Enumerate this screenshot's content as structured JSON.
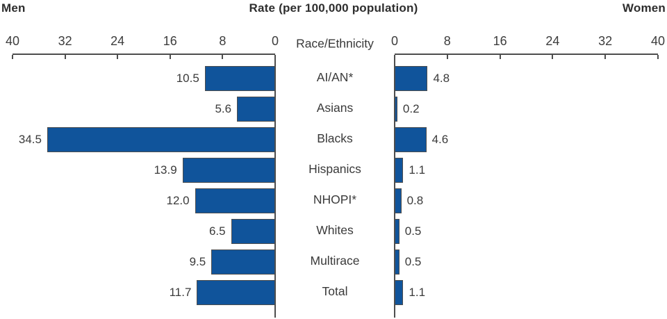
{
  "header": {
    "left_label": "Men",
    "title": "Rate (per 100,000 population)",
    "right_label": "Women"
  },
  "chart_data": {
    "type": "bar",
    "subtype": "bidirectional-horizontal-butterfly",
    "title": "Rate (per 100,000 population)",
    "category_axis_title": "Race/Ethnicity",
    "categories": [
      "AI/AN*",
      "Asians",
      "Blacks",
      "Hispanics",
      "NHOPI*",
      "Whites",
      "Multirace",
      "Total"
    ],
    "series": [
      {
        "name": "Men",
        "side": "left",
        "values": [
          10.5,
          5.6,
          34.5,
          13.9,
          12.0,
          6.5,
          9.5,
          11.7
        ]
      },
      {
        "name": "Women",
        "side": "right",
        "values": [
          4.8,
          0.2,
          4.6,
          1.1,
          0.8,
          0.5,
          0.5,
          1.1
        ]
      }
    ],
    "value_labels": {
      "men": [
        "10.5",
        "5.6",
        "34.5",
        "13.9",
        "12.0",
        "6.5",
        "9.5",
        "11.7"
      ],
      "women": [
        "4.8",
        "0.2",
        "4.6",
        "1.1",
        "0.8",
        "0.5",
        "0.5",
        "1.1"
      ]
    },
    "axis": {
      "min": 0,
      "max": 40,
      "ticks_left": [
        40,
        32,
        24,
        16,
        8,
        0
      ],
      "ticks_right": [
        0,
        8,
        16,
        24,
        32,
        40
      ]
    },
    "layout_hints": {
      "legend": "none",
      "grid": "off",
      "value_labels_position": "outside-end"
    },
    "colors": {
      "bar_fill": "#10549b",
      "bar_border": "#4d4d4d",
      "axis_line": "#4d4d4d",
      "text": "#3a3a3a"
    }
  }
}
